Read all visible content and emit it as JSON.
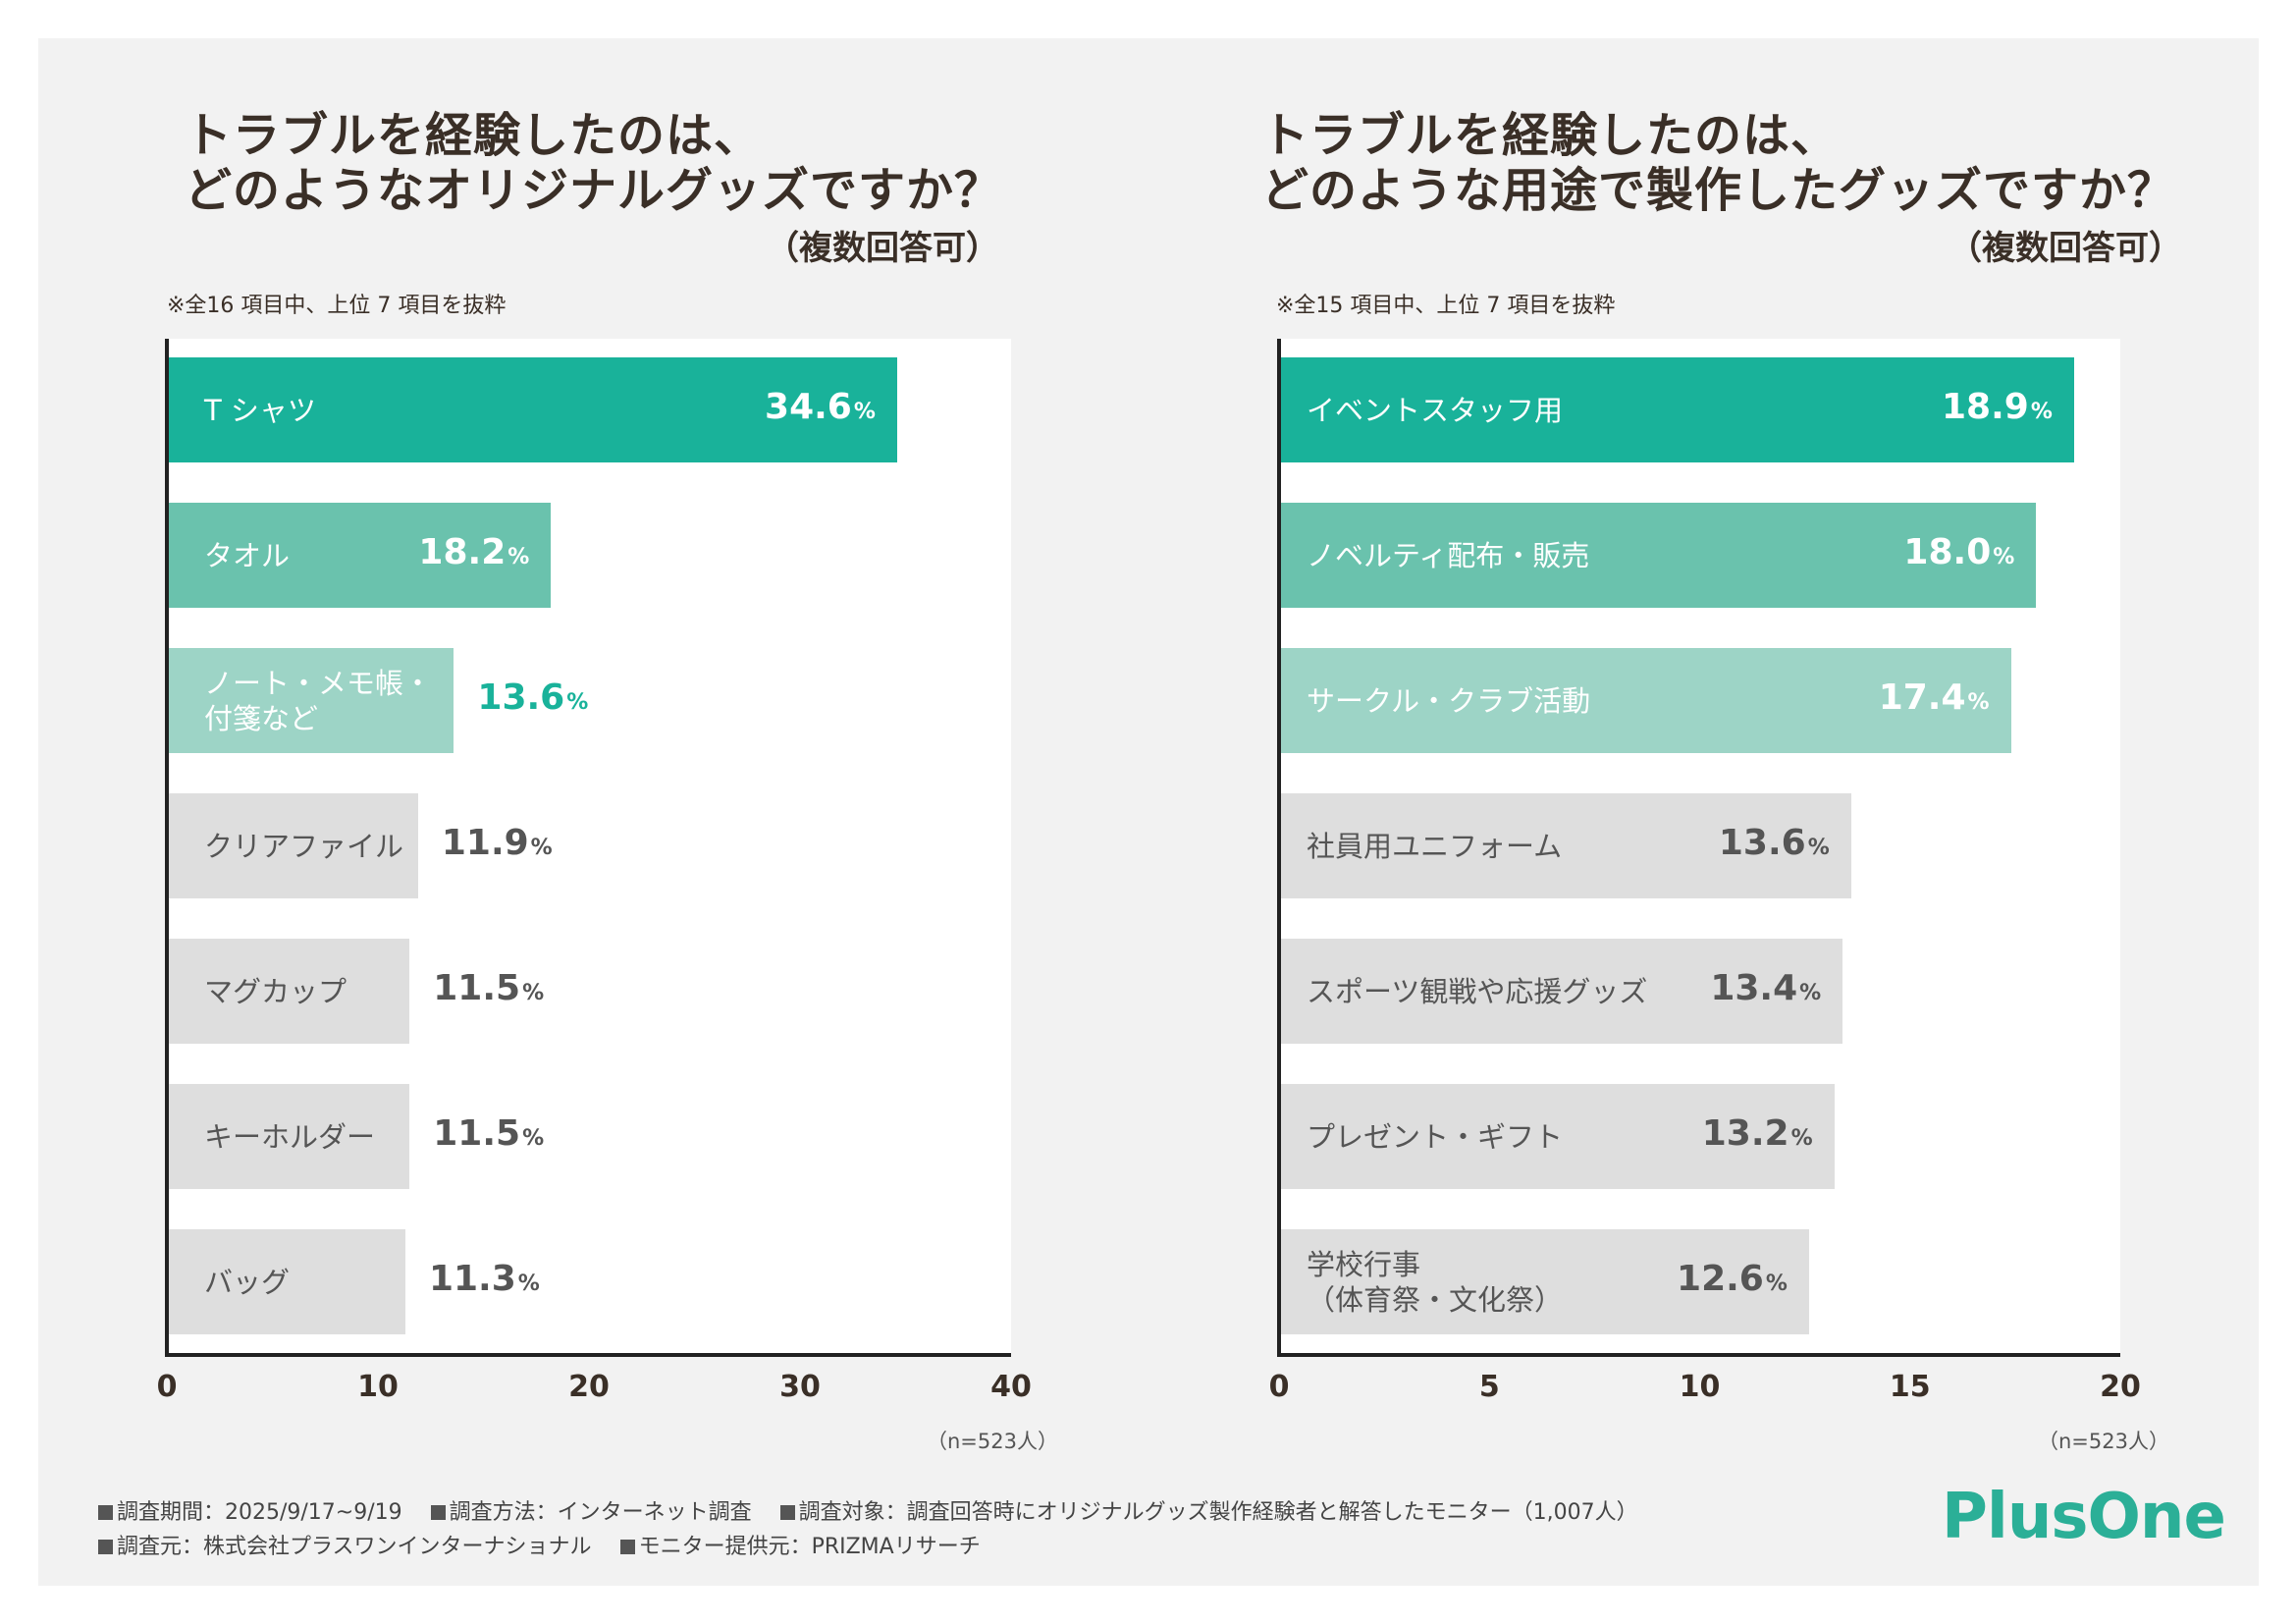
{
  "colors": {
    "top1": "#19b29a",
    "top2": "#6ac2ad",
    "top3": "#9dd4c6",
    "rest": "#dedede",
    "text_dark": "#3a2f27",
    "text_gray": "#555555",
    "accent": "#19b29a",
    "logo": "#2baf97"
  },
  "chart_data": [
    {
      "type": "bar",
      "orientation": "horizontal",
      "title": "トラブルを経験したのは、\nどのようなオリジナルグッズですか？",
      "title_lines": [
        "トラブルを経験したのは、",
        "どのようなオリジナルグッズですか？"
      ],
      "subtitle": "（複数回答可）",
      "note": "※全16 項目中、上位 7 項目を抜粋",
      "categories": [
        "T シャツ",
        "タオル",
        "ノート・メモ帳・付箋など",
        "クリアファイル",
        "マグカップ",
        "キーホルダー",
        "バッグ"
      ],
      "category_lines": [
        [
          "T シャツ"
        ],
        [
          "タオル"
        ],
        [
          "ノート・メモ帳・",
          "付箋など"
        ],
        [
          "クリアファイル"
        ],
        [
          "マグカップ"
        ],
        [
          "キーホルダー"
        ],
        [
          "バッグ"
        ]
      ],
      "values": [
        34.6,
        18.2,
        13.6,
        11.9,
        11.5,
        11.5,
        11.3
      ],
      "value_labels": [
        "34.6",
        "18.2",
        "13.6",
        "11.9",
        "11.5",
        "11.5",
        "11.3"
      ],
      "unit": "%",
      "xlim": [
        0,
        40
      ],
      "ticks": [
        0,
        10,
        20,
        30,
        40
      ],
      "tick_labels": [
        "0",
        "10",
        "20",
        "30",
        "40"
      ],
      "n_label": "（n=523人）"
    },
    {
      "type": "bar",
      "orientation": "horizontal",
      "title": "トラブルを経験したのは、\nどのような用途で製作したグッズですか？",
      "title_lines": [
        "トラブルを経験したのは、",
        "どのような用途で製作したグッズですか？"
      ],
      "subtitle": "（複数回答可）",
      "note": "※全15 項目中、上位 7 項目を抜粋",
      "categories": [
        "イベントスタッフ用",
        "ノベルティ配布・販売",
        "サークル・クラブ活動",
        "社員用ユニフォーム",
        "スポーツ観戦や応援グッズ",
        "プレゼント・ギフト",
        "学校行事（体育祭・文化祭）"
      ],
      "category_lines": [
        [
          "イベントスタッフ用"
        ],
        [
          "ノベルティ配布・販売"
        ],
        [
          "サークル・クラブ活動"
        ],
        [
          "社員用ユニフォーム"
        ],
        [
          "スポーツ観戦や応援グッズ"
        ],
        [
          "プレゼント・ギフト"
        ],
        [
          "学校行事",
          "（体育祭・文化祭）"
        ]
      ],
      "values": [
        18.9,
        18.0,
        17.4,
        13.6,
        13.4,
        13.2,
        12.6
      ],
      "value_labels": [
        "18.9",
        "18.0",
        "17.4",
        "13.6",
        "13.4",
        "13.2",
        "12.6"
      ],
      "unit": "%",
      "xlim": [
        0,
        20
      ],
      "ticks": [
        0,
        5,
        10,
        15,
        20
      ],
      "tick_labels": [
        "0",
        "5",
        "10",
        "15",
        "20"
      ],
      "n_label": "（n=523人）"
    }
  ],
  "footer": {
    "row1": [
      "調査期間：2025/9/17~9/19",
      "調査方法：インターネット調査",
      "調査対象：調査回答時にオリジナルグッズ製作経験者と解答したモニター（1,007人）"
    ],
    "row2": [
      "調査元：株式会社プラスワンインターナショナル",
      "モニター提供元：PRIZMAリサーチ"
    ]
  },
  "logo": {
    "text": "PlusOne"
  }
}
